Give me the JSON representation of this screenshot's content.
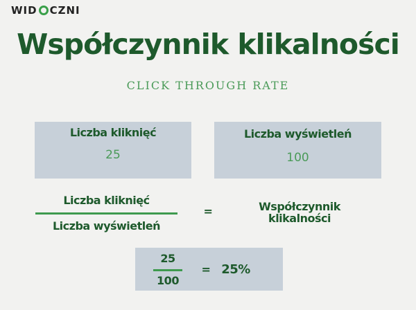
{
  "logo": {
    "text_left": "WID",
    "text_right": "CZNI",
    "brand_color": "#3aa04a"
  },
  "title": "Współczynnik klikalności",
  "subtitle": "CLICK THROUGH RATE",
  "clicks": {
    "label": "Liczba kliknięć",
    "value": "25"
  },
  "impressions": {
    "label": "Liczba wyświetleń",
    "value": "100"
  },
  "formula": {
    "numerator": "Liczba kliknięć",
    "denominator": "Liczba wyświetleń",
    "equals": "=",
    "result": "Współczynnik klikalności"
  },
  "example": {
    "numerator": "25",
    "denominator": "100",
    "equals": "=",
    "result": "25%"
  },
  "colors": {
    "dark_green": "#1e5a2c",
    "light_green": "#4a9a58",
    "box": "#c7d0d9"
  }
}
